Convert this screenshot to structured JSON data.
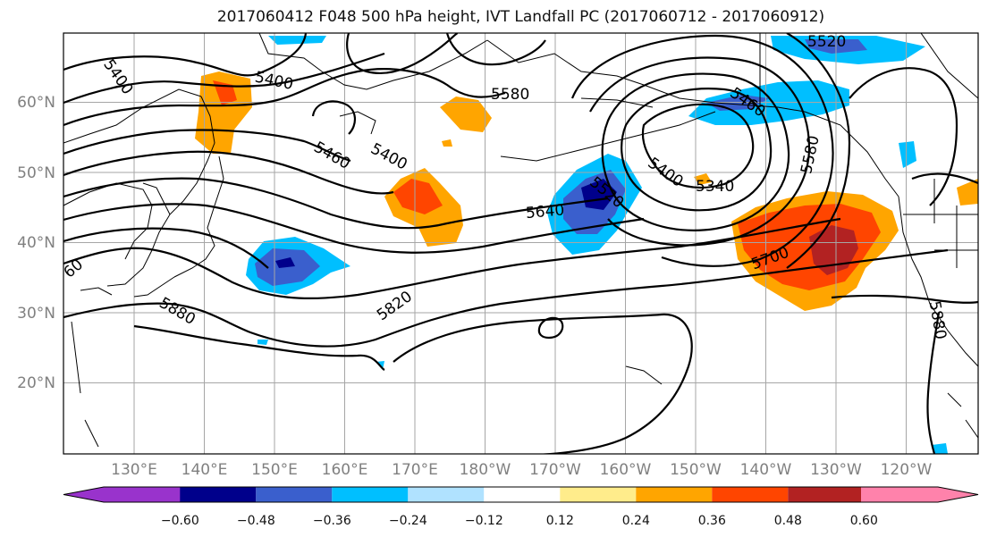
{
  "title": "2017060412 F048 500 hPa height, IVT Landfall PC (2017060712 - 2017060912)",
  "latitude_labels": [
    "60°N",
    "50°N",
    "40°N",
    "30°N",
    "20°N"
  ],
  "longitude_labels": [
    "130°E",
    "140°E",
    "150°E",
    "160°E",
    "170°E",
    "180°W",
    "170°W",
    "160°W",
    "150°W",
    "140°W",
    "130°W",
    "120°W"
  ],
  "contour_labels": [
    "5400",
    "5400",
    "5580",
    "5460",
    "5400",
    "5460",
    "5520",
    "5640",
    "5400",
    "5340",
    "5580",
    "5520",
    "5700",
    "5820",
    "5880",
    "5880",
    "60"
  ],
  "colorbar": {
    "colors": [
      "#9933cc",
      "#00008b",
      "#3a5fcd",
      "#00bfff",
      "#b0e2ff",
      "#ffffff",
      "#ffec8b",
      "#ffa500",
      "#ff4500",
      "#b22222",
      "#ff82ab"
    ],
    "tick_labels": [
      "−0.60",
      "−0.48",
      "−0.36",
      "−0.24",
      "−0.12",
      "0.12",
      "0.24",
      "0.36",
      "0.48",
      "0.60"
    ]
  }
}
